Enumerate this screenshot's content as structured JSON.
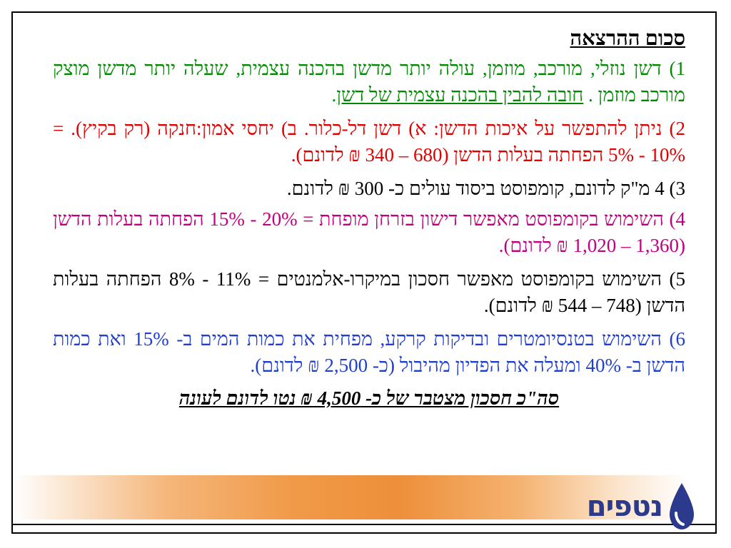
{
  "slide": {
    "title": "סכום ההרצאה",
    "items": [
      {
        "color": "#008a00",
        "text": "1) דשן נוזלי, מורכב, מוזמן, עולה יותר מדשן בהכנה עצמית, שעלה יותר מדשן מוצק מורכב מוזמן . ",
        "underlined": "חובה להבין בהכנה עצמית של דשן",
        "tail": "."
      },
      {
        "color": "#e00000",
        "text": "2) ניתן להתפשר על איכות הדשן: א) דשן דל-כלור. ב) יחסי אמון:חנקה (רק בקיץ).  = 10% - 5% הפחתה בעלות הדשן (680 – 340 ₪ לדונם)."
      },
      {
        "color": "#000000",
        "text": "3) 4 מ\"ק לדונם, קומפוסט ביסוד עולים כ- 300 ₪ לדונם."
      },
      {
        "color": "#c00080",
        "text": "4) השימוש בקומפוסט מאפשר דישון בזרחן מופחת = 20% - 15% הפחתה בעלות הדשן (1,360 – 1,020 ₪ לדונם)."
      },
      {
        "color": "#000000",
        "text": "5) השימוש בקומפוסט מאפשר חסכון במיקרו-אלמנטים = 11% - 8% הפחתה בעלות הדשן (748 – 544 ₪ לדונם)."
      },
      {
        "color": "#1f3fcf",
        "text": "6) השימוש בטנסיומטרים ובדיקות קרקע, מפחית את כמות המים ב- 15% ואת כמות הדשן ב- 40% ומעלה את הפדיון מהיבול (כ- 2,500 ₪ לדונם)."
      }
    ],
    "summary": "סה\"כ חסכון מצטבר של כ- 4,500 ₪ נטו לדונם לעונה"
  },
  "logo": {
    "text": "נטפים",
    "color": "#2b3a8c"
  },
  "band": {
    "accent": "#ee8f3a"
  }
}
